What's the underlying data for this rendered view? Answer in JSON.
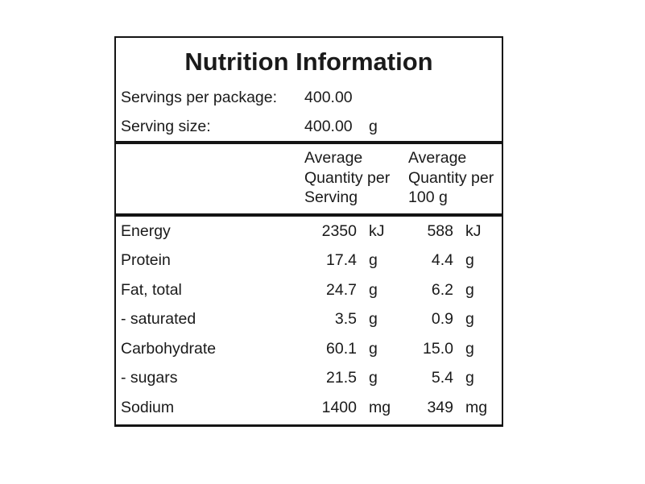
{
  "panel": {
    "title": "Nutrition Information",
    "servings_per_package": {
      "label": "Servings per package:",
      "value": "400.00"
    },
    "serving_size": {
      "label": "Serving size:",
      "value": "400.00",
      "unit": "g"
    }
  },
  "table": {
    "per_serving_header": "Average Quantity per Serving",
    "per_100g_header": "Average Quantity per 100 g",
    "rows": [
      {
        "name": "Energy",
        "per_serving": "2350",
        "per_serving_unit": "kJ",
        "per_100g": "588",
        "per_100g_unit": "kJ"
      },
      {
        "name": "Protein",
        "per_serving": "17.4",
        "per_serving_unit": "g",
        "per_100g": "4.4",
        "per_100g_unit": "g"
      },
      {
        "name": "Fat, total",
        "per_serving": "24.7",
        "per_serving_unit": "g",
        "per_100g": "6.2",
        "per_100g_unit": "g"
      },
      {
        "name": "- saturated",
        "per_serving": "3.5",
        "per_serving_unit": "g",
        "per_100g": "0.9",
        "per_100g_unit": "g"
      },
      {
        "name": "Carbohydrate",
        "per_serving": "60.1",
        "per_serving_unit": "g",
        "per_100g": "15.0",
        "per_100g_unit": "g"
      },
      {
        "name": "- sugars",
        "per_serving": "21.5",
        "per_serving_unit": "g",
        "per_100g": "5.4",
        "per_100g_unit": "g"
      },
      {
        "name": "Sodium",
        "per_serving": "1400",
        "per_serving_unit": "mg",
        "per_100g": "349",
        "per_100g_unit": "mg"
      }
    ]
  },
  "colors": {
    "background": "#ffffff",
    "text": "#1a1a1a",
    "border": "#141414"
  }
}
